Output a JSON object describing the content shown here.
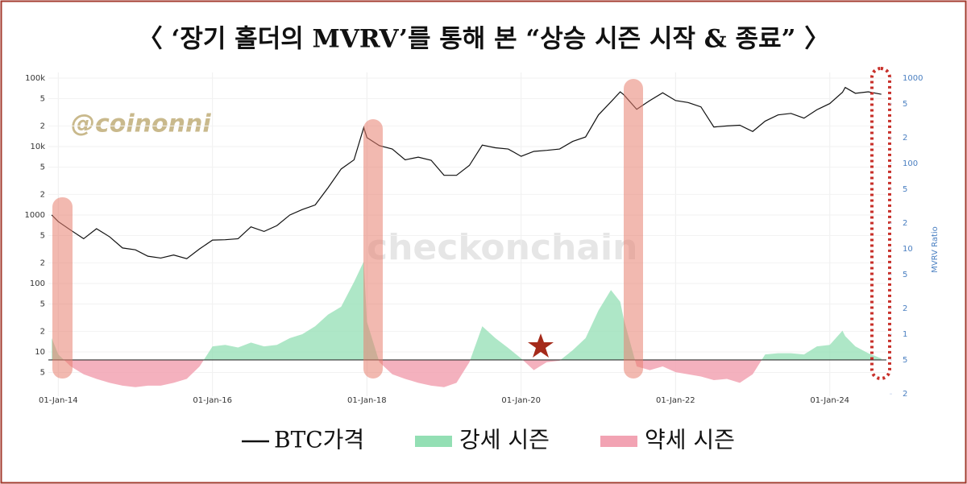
{
  "title": "〈 ‘장기 홀더의 MVRV’를 통해 본 “상승 시즌 시작 & 종료” 〉",
  "watermarks": [
    "@coinonni",
    "checkonchain"
  ],
  "chart_data": {
    "type": "line",
    "x": [
      "2013-12-01",
      "2014-01-01",
      "2014-03-01",
      "2014-05-01",
      "2014-07-01",
      "2014-09-01",
      "2014-11-01",
      "2015-01-01",
      "2015-03-01",
      "2015-05-01",
      "2015-07-01",
      "2015-09-01",
      "2015-11-01",
      "2016-01-01",
      "2016-03-01",
      "2016-05-01",
      "2016-07-01",
      "2016-09-01",
      "2016-11-01",
      "2017-01-01",
      "2017-03-01",
      "2017-05-01",
      "2017-07-01",
      "2017-09-01",
      "2017-11-01",
      "2017-12-17",
      "2018-01-01",
      "2018-03-01",
      "2018-05-01",
      "2018-07-01",
      "2018-09-01",
      "2018-11-01",
      "2019-01-01",
      "2019-03-01",
      "2019-05-01",
      "2019-07-01",
      "2019-09-01",
      "2019-11-01",
      "2020-01-01",
      "2020-03-01",
      "2020-05-01",
      "2020-07-01",
      "2020-09-01",
      "2020-11-01",
      "2021-01-01",
      "2021-03-01",
      "2021-04-14",
      "2021-05-01",
      "2021-07-01",
      "2021-09-01",
      "2021-11-01",
      "2022-01-01",
      "2022-03-01",
      "2022-05-01",
      "2022-07-01",
      "2022-09-01",
      "2022-11-01",
      "2023-01-01",
      "2023-03-01",
      "2023-05-01",
      "2023-07-01",
      "2023-09-01",
      "2023-11-01",
      "2024-01-01",
      "2024-03-01",
      "2024-03-14",
      "2024-05-01",
      "2024-07-01",
      "2024-09-01"
    ],
    "xlim": [
      "2013-11-15",
      "2024-09-25"
    ],
    "xticks": [
      {
        "value": "2014-01-01",
        "label": "01-Jan-14"
      },
      {
        "value": "2016-01-01",
        "label": "01-Jan-16"
      },
      {
        "value": "2018-01-01",
        "label": "01-Jan-18"
      },
      {
        "value": "2020-01-01",
        "label": "01-Jan-20"
      },
      {
        "value": "2022-01-01",
        "label": "01-Jan-22"
      },
      {
        "value": "2024-01-01",
        "label": "01-Jan-24"
      }
    ],
    "log_scale": true,
    "grid": true,
    "ylim": [
      2.25,
      120800
    ],
    "yticks": [
      {
        "value": 100000,
        "label": "100k"
      },
      {
        "value": 50000,
        "label": "5"
      },
      {
        "value": 20000,
        "label": "2"
      },
      {
        "value": 10000,
        "label": "10k"
      },
      {
        "value": 5000,
        "label": "5"
      },
      {
        "value": 2000,
        "label": "2"
      },
      1000,
      {
        "value": 500,
        "label": "5"
      },
      {
        "value": 200,
        "label": "2"
      },
      100,
      {
        "value": 50,
        "label": "5"
      },
      {
        "value": 20,
        "label": "2"
      },
      10,
      5
    ],
    "y2label": "MVRV Ratio",
    "y2lim": [
      0.188,
      1164
    ],
    "y2ticks": [
      1000,
      {
        "value": 500,
        "label": "5"
      },
      {
        "value": 200,
        "label": "2"
      },
      100,
      {
        "value": 50,
        "label": "5"
      },
      {
        "value": 20,
        "label": "2"
      },
      10,
      5,
      2,
      1,
      {
        "value": 0.5,
        "label": "5"
      },
      {
        "value": 0.2,
        "label": "2"
      }
    ],
    "series": [
      {
        "name": "BTC가격",
        "color": "#111111",
        "values": [
          1000,
          800,
          600,
          450,
          630,
          480,
          330,
          310,
          250,
          235,
          260,
          230,
          320,
          430,
          435,
          450,
          670,
          575,
          700,
          1000,
          1200,
          1400,
          2500,
          4700,
          6400,
          19000,
          13500,
          10300,
          9200,
          6400,
          7000,
          6300,
          3800,
          3800,
          5300,
          10500,
          9600,
          9200,
          7200,
          8500,
          8800,
          9200,
          11900,
          13800,
          29000,
          45000,
          63000,
          57000,
          35000,
          47000,
          61000,
          47000,
          44000,
          38000,
          19300,
          20000,
          20500,
          16600,
          23500,
          29000,
          30500,
          26000,
          34500,
          42500,
          62000,
          73000,
          60000,
          63000,
          58000
        ]
      },
      {
        "axis": "y2",
        "baseline": 0.5,
        "above": {
          "name": "강세 시즌",
          "color": "#93dfb4"
        },
        "below": {
          "name": "약세 시즌",
          "color": "#f2a3b3"
        },
        "values": [
          0.9,
          0.58,
          0.42,
          0.34,
          0.3,
          0.27,
          0.25,
          0.24,
          0.25,
          0.25,
          0.27,
          0.3,
          0.42,
          0.72,
          0.75,
          0.7,
          0.8,
          0.72,
          0.75,
          0.9,
          1.0,
          1.24,
          1.7,
          2.1,
          4.1,
          7.1,
          1.4,
          0.47,
          0.34,
          0.3,
          0.27,
          0.25,
          0.24,
          0.27,
          0.47,
          1.24,
          0.9,
          0.69,
          0.52,
          0.38,
          0.47,
          0.49,
          0.65,
          0.9,
          1.9,
          3.3,
          2.4,
          1.5,
          0.42,
          0.38,
          0.42,
          0.36,
          0.34,
          0.32,
          0.29,
          0.3,
          0.27,
          0.34,
          0.58,
          0.6,
          0.6,
          0.58,
          0.72,
          0.75,
          1.1,
          0.95,
          0.72,
          0.6,
          0.52
        ]
      }
    ]
  }
}
